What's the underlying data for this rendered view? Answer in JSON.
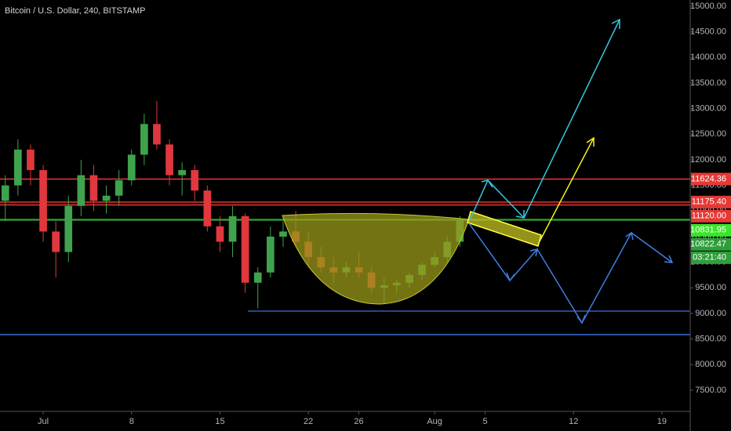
{
  "chart_data": {
    "type": "candlestick",
    "title": "Bitcoin / U.S. Dollar, 240, BITSTAMP",
    "x": [
      -3,
      -2,
      -1,
      0,
      1,
      2,
      3,
      4,
      5,
      6,
      7,
      8,
      9,
      10,
      11,
      12,
      13,
      14,
      15,
      16,
      17,
      18,
      19,
      20,
      21,
      22,
      23,
      24,
      25,
      26,
      27,
      28,
      29,
      30,
      31,
      32,
      33
    ],
    "open": [
      11200,
      11500,
      12200,
      11800,
      10600,
      10200,
      11100,
      11700,
      11200,
      11300,
      11600,
      12100,
      12700,
      12300,
      11700,
      11800,
      11400,
      10700,
      10400,
      10900,
      9600,
      9800,
      10500,
      10600,
      10400,
      10100,
      9900,
      9800,
      9900,
      9800,
      9500,
      9550,
      9600,
      9750,
      9950,
      10100,
      10400
    ],
    "high": [
      11700,
      12400,
      12300,
      11900,
      10800,
      11300,
      12000,
      11900,
      11500,
      11800,
      12200,
      12900,
      13150,
      12400,
      11950,
      11900,
      11500,
      10900,
      11100,
      10950,
      9900,
      10700,
      10800,
      11000,
      10600,
      10300,
      10100,
      10000,
      10200,
      9900,
      9700,
      9650,
      9800,
      10000,
      10200,
      10500,
      10900
    ],
    "low": [
      10800,
      11300,
      11500,
      10400,
      9700,
      10000,
      10900,
      11000,
      10950,
      11100,
      11500,
      11900,
      12200,
      11500,
      11300,
      11200,
      10600,
      10200,
      10100,
      9400,
      9100,
      9700,
      10300,
      10300,
      9900,
      9800,
      9600,
      9700,
      9700,
      9400,
      9200,
      9400,
      9500,
      9650,
      9900,
      10000,
      10300
    ],
    "close": [
      11500,
      12200,
      11800,
      10600,
      10200,
      11100,
      11700,
      11200,
      11300,
      11600,
      12100,
      12700,
      12300,
      11700,
      11800,
      11400,
      10700,
      10400,
      10900,
      9600,
      9800,
      10500,
      10600,
      10400,
      10100,
      9900,
      9800,
      9900,
      9800,
      9500,
      9550,
      9600,
      9750,
      9950,
      10100,
      10400,
      10831.95
    ],
    "up_color": "#3fa34d",
    "down_color": "#e0383e",
    "xlim": [
      -3.42,
      51.24
    ],
    "xticks": [
      {
        "value": 0,
        "label": "Jul"
      },
      {
        "value": 7,
        "label": "8"
      },
      {
        "value": 14,
        "label": "15"
      },
      {
        "value": 21,
        "label": "22"
      },
      {
        "value": 25,
        "label": "26"
      },
      {
        "value": 31,
        "label": "Aug"
      },
      {
        "value": 35,
        "label": "5"
      },
      {
        "value": 42,
        "label": "12"
      },
      {
        "value": 49,
        "label": "19"
      }
    ],
    "ylim": [
      7086,
      15122
    ],
    "yticks": [
      {
        "value": 7500,
        "label": "7500.00"
      },
      {
        "value": 8000,
        "label": "8000.00"
      },
      {
        "value": 8500,
        "label": "8500.00"
      },
      {
        "value": 9000,
        "label": "9000.00"
      },
      {
        "value": 9500,
        "label": "9500.00"
      },
      {
        "value": 10000,
        "label": "10000.00"
      },
      {
        "value": 10500,
        "label": "10500.00"
      },
      {
        "value": 11000,
        "label": "11000.00"
      },
      {
        "value": 11500,
        "label": "11500.00"
      },
      {
        "value": 12000,
        "label": "12000.00"
      },
      {
        "value": 12500,
        "label": "12500.00"
      },
      {
        "value": 13000,
        "label": "13000.00"
      },
      {
        "value": 13500,
        "label": "13500.00"
      },
      {
        "value": 14000,
        "label": "14000.00"
      },
      {
        "value": 14500,
        "label": "14500.00"
      },
      {
        "value": 15000,
        "label": "15000.00"
      }
    ],
    "price_lines": [
      {
        "value": 11624.36,
        "label": "11624.36",
        "color": "#e53935"
      },
      {
        "value": 11175.4,
        "label": "11175.40",
        "color": "#e53935"
      },
      {
        "value": 11120,
        "label": "11120.00",
        "color": "#e53935"
      },
      {
        "value": 10831.95,
        "label": "10831.95",
        "color": "#39e629"
      },
      {
        "value": 10822.47,
        "label": "10822.47",
        "color": "#2e9e3a"
      }
    ],
    "countdown": "03:21:40",
    "countdown_color": "#2e9e3a"
  }
}
